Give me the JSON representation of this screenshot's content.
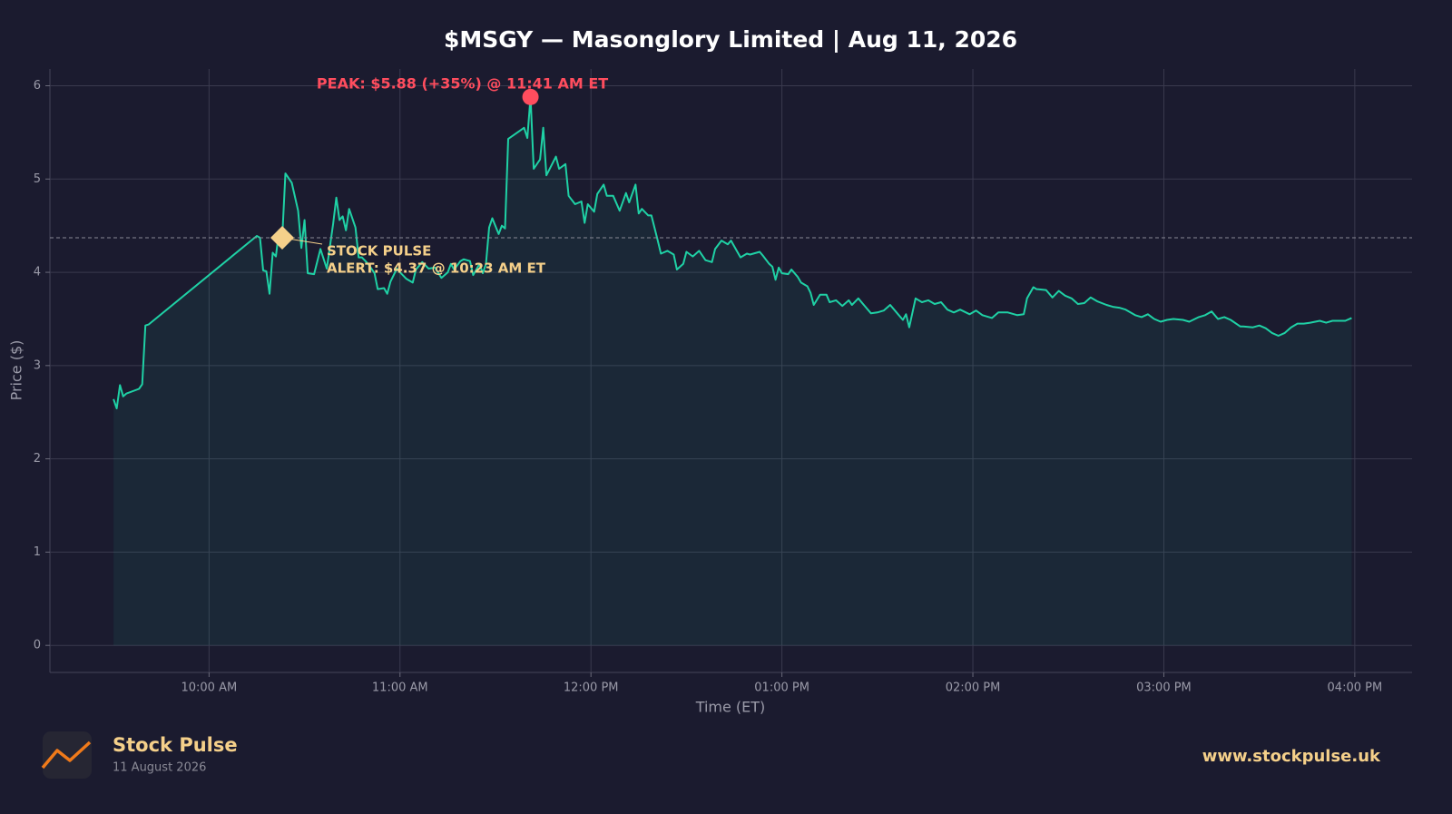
{
  "chart_data": {
    "type": "line",
    "title": "$MSGY — Masonglory Limited  |  Aug 11, 2026",
    "x_label": "Time (ET)",
    "y_label": "Price ($)",
    "xlim": [
      "09:10",
      "16:18"
    ],
    "ylim": [
      -0.29,
      6.18
    ],
    "xticks": [
      {
        "value": "10:00",
        "label": "10:00 AM"
      },
      {
        "value": "11:00",
        "label": "11:00 AM"
      },
      {
        "value": "12:00",
        "label": "12:00 PM"
      },
      {
        "value": "13:00",
        "label": "01:00 PM"
      },
      {
        "value": "14:00",
        "label": "02:00 PM"
      },
      {
        "value": "15:00",
        "label": "03:00 PM"
      },
      {
        "value": "16:00",
        "label": "04:00 PM"
      }
    ],
    "yticks": [
      0,
      1,
      2,
      3,
      4,
      5,
      6
    ],
    "grid": true,
    "x": [
      "09:30",
      "09:31",
      "09:32",
      "09:33",
      "09:34",
      "09:38",
      "09:39",
      "09:40",
      "09:41",
      "10:15",
      "10:16",
      "10:17",
      "10:18",
      "10:19",
      "10:20",
      "10:21",
      "10:22",
      "10:23",
      "10:24",
      "10:26",
      "10:28",
      "10:29",
      "10:30",
      "10:31",
      "10:33",
      "10:35",
      "10:37",
      "10:39",
      "10:40",
      "10:41",
      "10:42",
      "10:43",
      "10:44",
      "10:46",
      "10:47",
      "10:48",
      "10:50",
      "10:52",
      "10:53",
      "10:55",
      "10:56",
      "10:57",
      "10:59",
      "11:00",
      "11:02",
      "11:04",
      "11:05",
      "11:07",
      "11:09",
      "11:11",
      "11:13",
      "11:15",
      "11:16",
      "11:17",
      "11:19",
      "11:20",
      "11:22",
      "11:23",
      "11:25",
      "11:26",
      "11:27",
      "11:28",
      "11:29",
      "11:31",
      "11:32",
      "11:33",
      "11:34",
      "11:39",
      "11:40",
      "11:41",
      "11:42",
      "11:44",
      "11:45",
      "11:46",
      "11:49",
      "11:50",
      "11:52",
      "11:53",
      "11:55",
      "11:57",
      "11:58",
      "11:59",
      "12:01",
      "12:02",
      "12:04",
      "12:05",
      "12:07",
      "12:09",
      "12:11",
      "12:12",
      "12:14",
      "12:15",
      "12:16",
      "12:18",
      "12:19",
      "12:21",
      "12:22",
      "12:24",
      "12:26",
      "12:27",
      "12:29",
      "12:30",
      "12:32",
      "12:34",
      "12:36",
      "12:38",
      "12:39",
      "12:41",
      "12:43",
      "12:44",
      "12:46",
      "12:47",
      "12:49",
      "12:50",
      "12:53",
      "12:54",
      "12:56",
      "12:57",
      "12:58",
      "12:59",
      "13:00",
      "13:02",
      "13:03",
      "13:05",
      "13:06",
      "13:08",
      "13:09",
      "13:10",
      "13:12",
      "13:14",
      "13:15",
      "13:17",
      "13:19",
      "13:21",
      "13:22",
      "13:24",
      "13:26",
      "13:28",
      "13:30",
      "13:32",
      "13:34",
      "13:36",
      "13:38",
      "13:39",
      "13:40",
      "13:42",
      "13:44",
      "13:46",
      "13:48",
      "13:50",
      "13:52",
      "13:54",
      "13:56",
      "13:59",
      "14:01",
      "14:03",
      "14:06",
      "14:08",
      "14:11",
      "14:14",
      "14:16",
      "14:17",
      "14:19",
      "14:20",
      "14:23",
      "14:25",
      "14:27",
      "14:29",
      "14:31",
      "14:33",
      "14:35",
      "14:37",
      "14:39",
      "14:42",
      "14:44",
      "14:46",
      "14:48",
      "14:51",
      "14:53",
      "14:55",
      "14:57",
      "14:59",
      "15:01",
      "15:03",
      "15:06",
      "15:08",
      "15:11",
      "15:13",
      "15:15",
      "15:17",
      "15:19",
      "15:21",
      "15:24",
      "15:25",
      "15:28",
      "15:30",
      "15:32",
      "15:34",
      "15:36",
      "15:38",
      "15:40",
      "15:42",
      "15:44",
      "15:46",
      "15:49",
      "15:51",
      "15:53",
      "15:56",
      "15:57",
      "15:59"
    ],
    "series": [
      {
        "name": "$MSGY",
        "color": "#1fd1a5",
        "values": [
          2.64,
          2.54,
          2.79,
          2.67,
          2.7,
          2.75,
          2.8,
          3.43,
          3.44,
          4.39,
          4.37,
          4.02,
          4.01,
          3.77,
          4.21,
          4.17,
          4.45,
          4.37,
          5.06,
          4.96,
          4.66,
          4.26,
          4.56,
          3.99,
          3.98,
          4.25,
          4.04,
          4.52,
          4.8,
          4.56,
          4.6,
          4.45,
          4.68,
          4.48,
          4.16,
          4.16,
          4.09,
          3.99,
          3.82,
          3.83,
          3.77,
          3.9,
          4.04,
          4.0,
          3.93,
          3.89,
          4.03,
          4.11,
          4.04,
          4.05,
          3.94,
          4.0,
          4.09,
          4.03,
          4.12,
          4.14,
          4.12,
          3.97,
          4.09,
          3.99,
          4.09,
          4.48,
          4.58,
          4.41,
          4.5,
          4.47,
          5.43,
          5.55,
          5.44,
          5.88,
          5.11,
          5.21,
          5.55,
          5.04,
          5.24,
          5.11,
          5.16,
          4.82,
          4.73,
          4.76,
          4.53,
          4.73,
          4.65,
          4.84,
          4.94,
          4.82,
          4.82,
          4.66,
          4.85,
          4.75,
          4.94,
          4.63,
          4.68,
          4.61,
          4.61,
          4.34,
          4.2,
          4.23,
          4.19,
          4.03,
          4.09,
          4.22,
          4.17,
          4.23,
          4.13,
          4.11,
          4.25,
          4.34,
          4.3,
          4.34,
          4.22,
          4.16,
          4.2,
          4.19,
          4.22,
          4.18,
          4.09,
          4.06,
          3.92,
          4.05,
          3.99,
          3.98,
          4.03,
          3.95,
          3.89,
          3.85,
          3.78,
          3.65,
          3.76,
          3.76,
          3.68,
          3.7,
          3.64,
          3.7,
          3.65,
          3.72,
          3.64,
          3.56,
          3.57,
          3.59,
          3.65,
          3.57,
          3.49,
          3.55,
          3.41,
          3.72,
          3.68,
          3.7,
          3.66,
          3.68,
          3.6,
          3.57,
          3.6,
          3.55,
          3.59,
          3.54,
          3.51,
          3.57,
          3.57,
          3.54,
          3.55,
          3.72,
          3.84,
          3.82,
          3.81,
          3.73,
          3.8,
          3.75,
          3.72,
          3.66,
          3.67,
          3.73,
          3.69,
          3.65,
          3.63,
          3.62,
          3.6,
          3.54,
          3.52,
          3.55,
          3.5,
          3.47,
          3.49,
          3.5,
          3.49,
          3.47,
          3.52,
          3.54,
          3.58,
          3.5,
          3.52,
          3.49,
          3.42,
          3.42,
          3.41,
          3.43,
          3.4,
          3.35,
          3.32,
          3.35,
          3.41,
          3.45,
          3.45,
          3.46,
          3.48,
          3.46,
          3.48,
          3.48,
          3.48,
          3.51
        ]
      }
    ],
    "annotations": [
      {
        "kind": "peak",
        "text": "PEAK: $5.88 (+35%) @ 11:41 AM ET",
        "x": "11:41",
        "y": 5.88,
        "color": "#ff4d5e"
      },
      {
        "kind": "alert",
        "lines": [
          "STOCK PULSE",
          "ALERT: $4.37 @ 10:23 AM ET"
        ],
        "x": "10:23",
        "y": 4.37,
        "color": "#f5d08a"
      }
    ]
  },
  "footer": {
    "brand": "Stock Pulse",
    "date": "11 August 2026",
    "url": "www.stockpulse.uk"
  }
}
